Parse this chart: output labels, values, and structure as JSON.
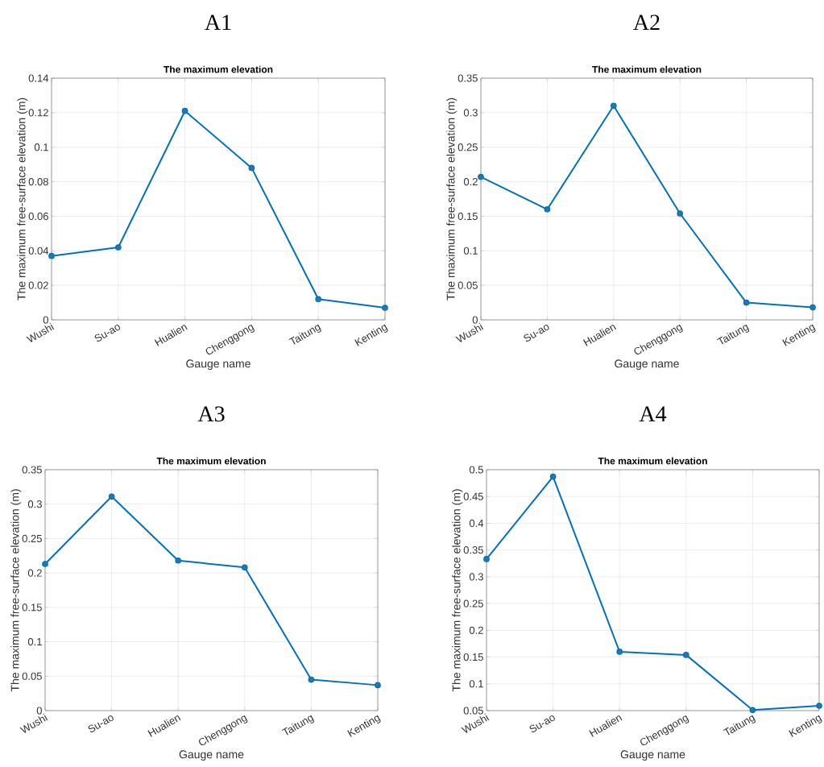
{
  "chart_data": [
    {
      "type": "line",
      "title": "A1",
      "subtitle": "The maximum elevation",
      "xlabel": "Gauge name",
      "ylabel": "The maximum free-surface elevation (m)",
      "categories": [
        "Wushi",
        "Su-ao",
        "Hualien",
        "Chenggong",
        "Taitung",
        "Kenting"
      ],
      "values": [
        0.037,
        0.042,
        0.121,
        0.088,
        0.012,
        0.007
      ],
      "color": "#0072bd",
      "ylim": [
        0,
        0.14
      ],
      "yticks": [
        0,
        0.02,
        0.04,
        0.06,
        0.08,
        0.1,
        0.12,
        0.14
      ],
      "grid": true,
      "marker": "circle"
    },
    {
      "type": "line",
      "title": "A2",
      "subtitle": "The maximum elevation",
      "xlabel": "Gauge name",
      "ylabel": "The maximum free-surface elevation (m)",
      "categories": [
        "Wushi",
        "Su-ao",
        "Hualien",
        "Chenggong",
        "Taitung",
        "Kenting"
      ],
      "values": [
        0.207,
        0.16,
        0.31,
        0.154,
        0.025,
        0.018
      ],
      "color": "#0072bd",
      "ylim": [
        0,
        0.35
      ],
      "yticks": [
        0,
        0.05,
        0.1,
        0.15,
        0.2,
        0.25,
        0.3,
        0.35
      ],
      "grid": true,
      "marker": "circle"
    },
    {
      "type": "line",
      "title": "A3",
      "subtitle": "The maximum elevation",
      "xlabel": "Gauge name",
      "ylabel": "The maximum free-surface elevation (m)",
      "categories": [
        "Wushi",
        "Su-ao",
        "Hualien",
        "Chenggong",
        "Taitung",
        "Kenting"
      ],
      "values": [
        0.213,
        0.311,
        0.218,
        0.208,
        0.045,
        0.037
      ],
      "color": "#0072bd",
      "ylim": [
        0,
        0.35
      ],
      "yticks": [
        0,
        0.05,
        0.1,
        0.15,
        0.2,
        0.25,
        0.3,
        0.35
      ],
      "grid": true,
      "marker": "circle"
    },
    {
      "type": "line",
      "title": "A4",
      "subtitle": "The maximum elevation",
      "xlabel": "Gauge name",
      "ylabel": "The maximum free-surface elevation (m)",
      "categories": [
        "Wushi",
        "Su-ao",
        "Hualien",
        "Chenggong",
        "Taitung",
        "Kenting"
      ],
      "values": [
        0.333,
        0.487,
        0.16,
        0.154,
        0.051,
        0.059
      ],
      "color": "#0072bd",
      "ylim": [
        0.05,
        0.5
      ],
      "yticks": [
        0.05,
        0.1,
        0.15,
        0.2,
        0.25,
        0.3,
        0.35,
        0.4,
        0.45,
        0.5
      ],
      "grid": true,
      "marker": "circle"
    }
  ]
}
